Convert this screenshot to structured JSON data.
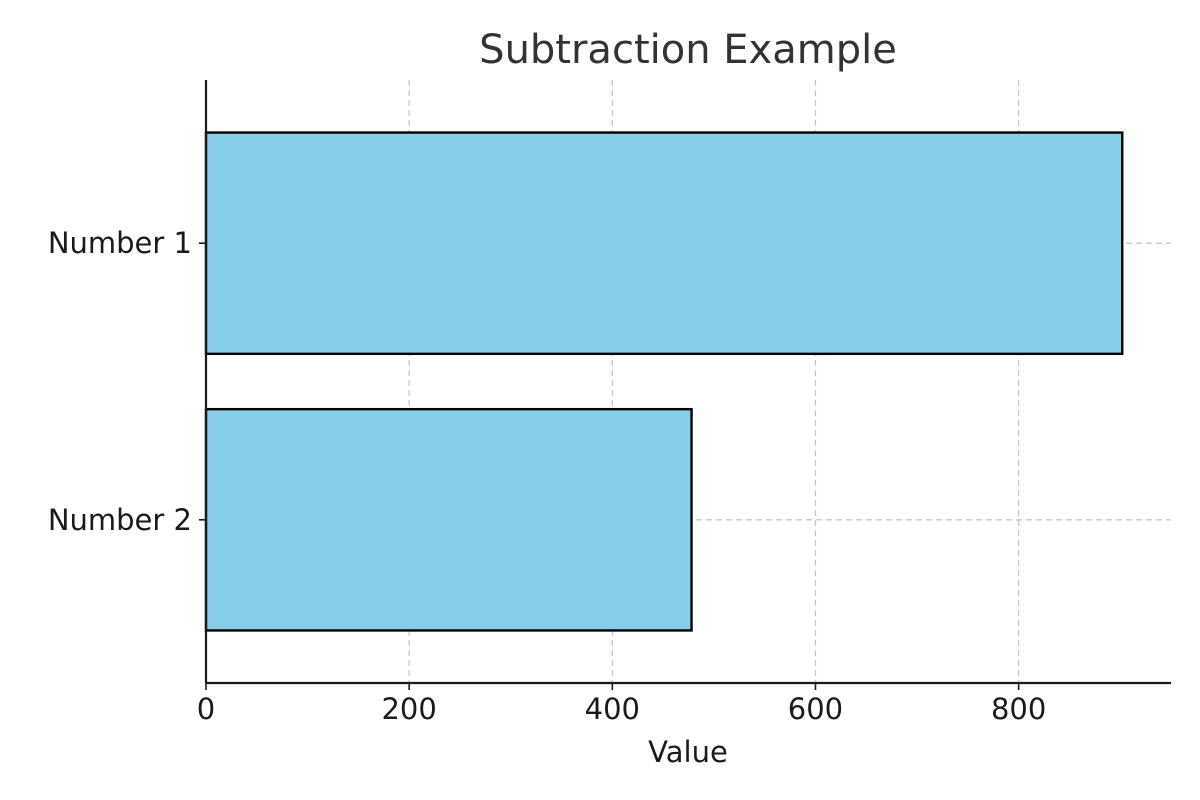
{
  "chart_data": {
    "type": "bar",
    "orientation": "horizontal",
    "title": "Subtraction Example",
    "xlabel": "Value",
    "ylabel": "",
    "categories": [
      "Number 1",
      "Number 2"
    ],
    "values": [
      902,
      478
    ],
    "xlim": [
      0,
      950
    ],
    "xticks": [
      0,
      200,
      400,
      600,
      800
    ],
    "grid": true,
    "bar_color": "#87ceeb",
    "bar_edge_color": "#000000"
  }
}
